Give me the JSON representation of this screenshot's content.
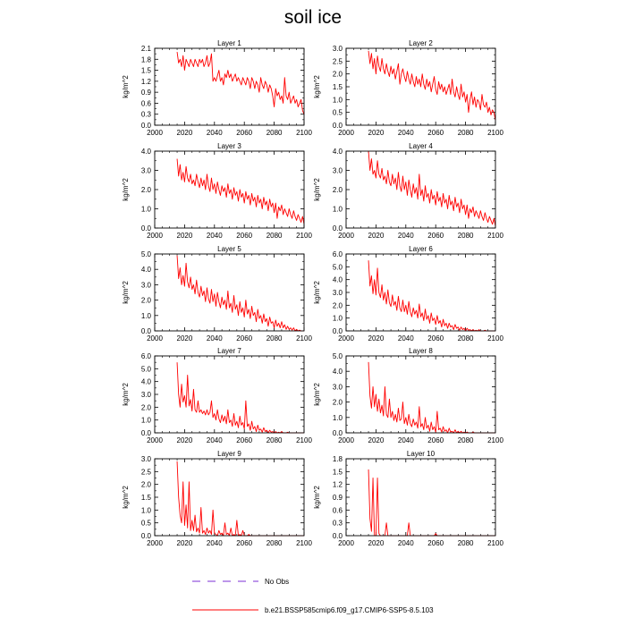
{
  "title": "soil ice",
  "colors": {
    "series": "#ff0000",
    "no_obs": "#7b2fd6",
    "axis": "#000000"
  },
  "legend": {
    "no_obs_label": "No Obs",
    "model_label": "b.e21.BSSP585cmip6.f09_g17.CMIP6-SSP5-8.5.103"
  },
  "chart_data": [
    {
      "type": "line",
      "title": "Layer 1",
      "ylabel": "kg/m^2",
      "xlim": [
        2000,
        2100
      ],
      "ylim": [
        0,
        2.1
      ],
      "xticks": [
        "2000",
        "2020",
        "2040",
        "2060",
        "2080",
        "2100"
      ],
      "yticks": [
        "0.0",
        "0.3",
        "0.6",
        "0.9",
        "1.2",
        "1.5",
        "1.8",
        "2.1"
      ],
      "x_start": 2015,
      "values": [
        2.0,
        1.7,
        1.8,
        1.6,
        1.9,
        1.5,
        1.8,
        1.7,
        1.6,
        1.8,
        1.7,
        1.6,
        1.8,
        1.7,
        1.6,
        1.8,
        1.7,
        1.8,
        1.6,
        1.7,
        1.9,
        1.6,
        1.7,
        1.95,
        1.2,
        1.3,
        1.2,
        1.35,
        1.5,
        1.2,
        1.3,
        1.1,
        1.4,
        1.3,
        1.5,
        1.3,
        1.4,
        1.2,
        1.3,
        1.4,
        1.2,
        1.3,
        1.2,
        1.1,
        1.3,
        1.2,
        1.1,
        1.3,
        1.2,
        1.0,
        1.3,
        1.2,
        1.0,
        1.2,
        1.1,
        0.9,
        1.3,
        1.1,
        1.0,
        1.2,
        1.1,
        0.9,
        1.1,
        1.0,
        0.8,
        0.5,
        1.0,
        0.8,
        0.9,
        0.7,
        0.8,
        0.6,
        1.3,
        0.8,
        0.7,
        0.9,
        0.6,
        0.7,
        0.8,
        0.6,
        0.7,
        0.5,
        0.6,
        0.7,
        0.4,
        0.3
      ]
    },
    {
      "type": "line",
      "title": "Layer 2",
      "ylabel": "kg/m^2",
      "xlim": [
        2000,
        2100
      ],
      "ylim": [
        0,
        3.0
      ],
      "xticks": [
        "2000",
        "2020",
        "2040",
        "2060",
        "2080",
        "2100"
      ],
      "yticks": [
        "0.0",
        "0.5",
        "1.0",
        "1.5",
        "2.0",
        "2.5",
        "3.0"
      ],
      "x_start": 2015,
      "values": [
        2.9,
        2.4,
        2.8,
        2.2,
        2.6,
        2.0,
        2.7,
        2.3,
        2.1,
        2.6,
        2.2,
        2.0,
        2.4,
        2.1,
        1.9,
        2.3,
        2.0,
        2.2,
        1.8,
        2.1,
        2.4,
        1.6,
        2.0,
        2.2,
        1.9,
        1.7,
        2.1,
        1.8,
        1.6,
        2.0,
        1.7,
        1.5,
        1.9,
        1.6,
        1.8,
        1.5,
        2.0,
        1.6,
        1.4,
        1.8,
        1.5,
        1.7,
        1.3,
        1.6,
        1.9,
        1.4,
        1.2,
        1.7,
        1.4,
        1.6,
        1.3,
        1.5,
        1.2,
        1.4,
        1.6,
        1.2,
        1.8,
        1.3,
        1.1,
        1.5,
        1.2,
        1.0,
        1.6,
        1.1,
        1.3,
        0.9,
        1.2,
        0.5,
        1.0,
        1.3,
        0.8,
        1.1,
        0.7,
        1.0,
        0.9,
        0.6,
        1.2,
        0.8,
        0.7,
        0.9,
        0.5,
        0.7,
        0.4,
        0.6,
        0.5,
        0.2
      ]
    },
    {
      "type": "line",
      "title": "Layer 3",
      "ylabel": "kg/m^2",
      "xlim": [
        2000,
        2100
      ],
      "ylim": [
        0,
        4.0
      ],
      "xticks": [
        "2000",
        "2020",
        "2040",
        "2060",
        "2080",
        "2100"
      ],
      "yticks": [
        "0.0",
        "1.0",
        "2.0",
        "3.0",
        "4.0"
      ],
      "x_start": 2015,
      "values": [
        3.6,
        2.7,
        3.3,
        2.5,
        2.9,
        2.4,
        3.2,
        2.6,
        2.4,
        2.8,
        2.3,
        2.5,
        2.2,
        2.8,
        2.4,
        2.1,
        2.6,
        2.2,
        2.5,
        2.0,
        2.8,
        2.2,
        1.9,
        2.6,
        2.0,
        2.3,
        1.8,
        2.4,
        2.0,
        1.7,
        2.2,
        1.9,
        2.1,
        1.6,
        2.3,
        1.8,
        2.0,
        1.5,
        2.1,
        1.7,
        1.9,
        1.4,
        2.0,
        1.6,
        1.8,
        1.3,
        1.9,
        1.5,
        1.7,
        1.2,
        1.8,
        1.4,
        1.6,
        1.1,
        1.7,
        1.3,
        1.5,
        1.0,
        1.6,
        1.2,
        1.4,
        0.9,
        1.5,
        1.1,
        1.3,
        0.8,
        1.3,
        0.5,
        1.1,
        0.9,
        1.2,
        0.7,
        1.0,
        0.8,
        0.6,
        1.0,
        0.7,
        0.5,
        0.9,
        0.6,
        0.4,
        0.7,
        0.5,
        0.3,
        0.6,
        0.2
      ]
    },
    {
      "type": "line",
      "title": "Layer 4",
      "ylabel": "kg/m^2",
      "xlim": [
        2000,
        2100
      ],
      "ylim": [
        0,
        4.0
      ],
      "xticks": [
        "2000",
        "2020",
        "2040",
        "2060",
        "2080",
        "2100"
      ],
      "yticks": [
        "0.0",
        "1.0",
        "2.0",
        "3.0",
        "4.0"
      ],
      "x_start": 2015,
      "values": [
        4.0,
        3.0,
        3.6,
        2.8,
        3.0,
        2.6,
        3.5,
        2.8,
        2.6,
        3.1,
        2.5,
        2.7,
        2.3,
        3.0,
        2.4,
        2.2,
        2.8,
        2.3,
        2.6,
        2.0,
        2.9,
        2.2,
        1.9,
        2.7,
        2.0,
        2.4,
        1.7,
        2.5,
        2.0,
        1.6,
        2.3,
        1.8,
        2.1,
        1.5,
        2.8,
        1.7,
        2.0,
        1.4,
        2.2,
        1.6,
        1.8,
        1.3,
        2.0,
        1.5,
        1.7,
        1.2,
        1.9,
        1.4,
        1.6,
        1.1,
        1.8,
        1.3,
        1.5,
        1.0,
        1.7,
        1.2,
        1.4,
        0.9,
        1.6,
        1.1,
        1.3,
        0.8,
        1.5,
        1.0,
        1.2,
        0.7,
        1.2,
        0.5,
        1.0,
        0.8,
        1.1,
        0.6,
        0.9,
        0.7,
        0.5,
        0.9,
        0.6,
        0.4,
        0.8,
        0.5,
        0.3,
        0.6,
        0.4,
        0.2,
        0.5,
        0.1
      ]
    },
    {
      "type": "line",
      "title": "Layer 5",
      "ylabel": "kg/m^2",
      "xlim": [
        2000,
        2100
      ],
      "ylim": [
        0,
        5.0
      ],
      "xticks": [
        "2000",
        "2020",
        "2040",
        "2060",
        "2080",
        "2100"
      ],
      "yticks": [
        "0.0",
        "1.0",
        "2.0",
        "3.0",
        "4.0",
        "5.0"
      ],
      "x_start": 2015,
      "values": [
        4.9,
        3.4,
        4.1,
        3.0,
        3.6,
        2.9,
        4.4,
        3.2,
        2.8,
        3.5,
        2.7,
        3.0,
        2.4,
        3.3,
        2.5,
        2.2,
        2.9,
        2.3,
        2.6,
        1.9,
        2.8,
        2.1,
        1.8,
        2.7,
        1.9,
        2.4,
        1.6,
        2.5,
        1.9,
        1.5,
        2.2,
        1.7,
        2.0,
        1.4,
        2.6,
        1.5,
        1.8,
        1.2,
        2.3,
        1.4,
        1.7,
        1.0,
        1.9,
        1.2,
        1.5,
        0.9,
        2.0,
        1.1,
        1.4,
        0.8,
        1.6,
        1.0,
        1.2,
        0.6,
        1.4,
        0.8,
        1.0,
        0.5,
        1.1,
        0.6,
        0.8,
        0.3,
        0.9,
        0.5,
        0.6,
        0.2,
        0.7,
        0.3,
        0.5,
        0.2,
        0.6,
        0.2,
        0.4,
        0.1,
        0.3,
        0.1,
        0.2,
        0.05,
        0.2,
        0.0,
        0.1,
        0.0,
        0.05,
        0.0,
        0.0,
        0.0
      ]
    },
    {
      "type": "line",
      "title": "Layer 6",
      "ylabel": "kg/m^2",
      "xlim": [
        2000,
        2100
      ],
      "ylim": [
        0,
        6.0
      ],
      "xticks": [
        "2000",
        "2020",
        "2040",
        "2060",
        "2080",
        "2100"
      ],
      "yticks": [
        "0.0",
        "1.0",
        "2.0",
        "3.0",
        "4.0",
        "5.0",
        "6.0"
      ],
      "x_start": 2015,
      "values": [
        5.5,
        3.5,
        4.3,
        2.9,
        4.0,
        2.8,
        4.9,
        3.0,
        2.6,
        3.6,
        2.4,
        3.0,
        2.1,
        3.2,
        2.2,
        1.9,
        2.8,
        2.0,
        2.3,
        1.6,
        2.7,
        1.8,
        1.5,
        2.4,
        1.5,
        2.0,
        1.3,
        2.3,
        1.5,
        1.1,
        1.8,
        1.3,
        1.6,
        1.0,
        2.1,
        1.1,
        1.4,
        0.8,
        1.7,
        0.9,
        1.2,
        0.6,
        1.4,
        0.8,
        1.0,
        0.5,
        1.2,
        0.6,
        0.8,
        0.3,
        0.9,
        0.4,
        0.6,
        0.2,
        0.6,
        0.3,
        0.4,
        0.1,
        0.5,
        0.2,
        0.3,
        0.05,
        0.3,
        0.1,
        0.2,
        0.0,
        0.2,
        0.05,
        0.1,
        0.0,
        0.1,
        0.0,
        0.05,
        0.0,
        0.1,
        0.0,
        0.0,
        0.0,
        0.05,
        0.0,
        0.0,
        0.0,
        0.0,
        0.0,
        0.0,
        0.0
      ]
    },
    {
      "type": "line",
      "title": "Layer 7",
      "ylabel": "kg/m^2",
      "xlim": [
        2000,
        2100
      ],
      "ylim": [
        0,
        6.0
      ],
      "xticks": [
        "2000",
        "2020",
        "2040",
        "2060",
        "2080",
        "2100"
      ],
      "yticks": [
        "0.0",
        "1.0",
        "2.0",
        "3.0",
        "4.0",
        "5.0",
        "6.0"
      ],
      "x_start": 2015,
      "values": [
        5.5,
        3.0,
        2.0,
        3.8,
        2.4,
        2.9,
        2.0,
        4.5,
        2.1,
        2.6,
        1.7,
        3.4,
        1.8,
        1.6,
        2.5,
        1.6,
        1.8,
        1.5,
        1.7,
        1.4,
        1.8,
        1.4,
        1.6,
        2.5,
        1.2,
        1.5,
        1.0,
        1.8,
        1.1,
        0.8,
        1.4,
        0.9,
        1.3,
        0.7,
        1.8,
        0.8,
        1.0,
        0.5,
        1.5,
        0.6,
        0.9,
        0.4,
        1.3,
        0.6,
        0.8,
        0.3,
        2.5,
        0.5,
        0.7,
        0.2,
        0.9,
        0.3,
        0.5,
        0.1,
        0.6,
        0.2,
        0.3,
        0.05,
        0.4,
        0.1,
        0.2,
        0.0,
        0.2,
        0.05,
        0.1,
        0.0,
        0.1,
        0.0,
        0.05,
        0.0,
        0.1,
        0.0,
        0.0,
        0.0,
        0.05,
        0.0,
        0.0,
        0.0,
        0.0,
        0.0,
        0.0,
        0.0,
        0.0,
        0.0,
        0.0,
        0.0
      ]
    },
    {
      "type": "line",
      "title": "Layer 8",
      "ylabel": "kg/m^2",
      "xlim": [
        2000,
        2100
      ],
      "ylim": [
        0,
        5.0
      ],
      "xticks": [
        "2000",
        "2020",
        "2040",
        "2060",
        "2080",
        "2100"
      ],
      "yticks": [
        "0.0",
        "1.0",
        "2.0",
        "3.0",
        "4.0",
        "5.0"
      ],
      "x_start": 2015,
      "values": [
        4.6,
        2.4,
        1.6,
        3.0,
        1.7,
        2.5,
        1.4,
        2.2,
        1.3,
        1.8,
        1.1,
        3.0,
        1.2,
        1.0,
        2.2,
        1.0,
        1.4,
        0.8,
        1.2,
        0.7,
        1.6,
        0.8,
        0.9,
        2.0,
        0.6,
        1.0,
        0.5,
        1.2,
        0.6,
        0.4,
        0.9,
        0.5,
        0.7,
        0.3,
        1.7,
        0.4,
        0.6,
        0.2,
        1.0,
        0.3,
        0.5,
        0.1,
        0.7,
        0.2,
        0.4,
        0.05,
        1.4,
        0.2,
        0.3,
        0.05,
        0.4,
        0.1,
        0.2,
        0.0,
        0.3,
        0.05,
        0.1,
        0.0,
        0.2,
        0.0,
        0.1,
        0.0,
        0.1,
        0.0,
        0.05,
        0.0,
        0.05,
        0.0,
        0.0,
        0.0,
        0.05,
        0.0,
        0.0,
        0.0,
        0.0,
        0.0,
        0.0,
        0.0,
        0.0,
        0.0,
        0.0,
        0.0,
        0.0,
        0.0,
        0.0,
        0.0
      ]
    },
    {
      "type": "line",
      "title": "Layer 9",
      "ylabel": "kg/m^2",
      "xlim": [
        2000,
        2100
      ],
      "ylim": [
        0,
        3.0
      ],
      "xticks": [
        "2000",
        "2020",
        "2040",
        "2060",
        "2080",
        "2100"
      ],
      "yticks": [
        "0.0",
        "0.5",
        "1.0",
        "1.5",
        "2.0",
        "2.5",
        "3.0"
      ],
      "x_start": 2015,
      "values": [
        2.9,
        1.5,
        0.8,
        0.5,
        2.1,
        0.4,
        1.2,
        0.3,
        2.1,
        0.2,
        0.6,
        0.2,
        0.8,
        0.15,
        0.3,
        0.1,
        1.1,
        0.1,
        0.2,
        0.05,
        0.3,
        0.1,
        0.2,
        0.05,
        1.0,
        0.1,
        0.05,
        0.0,
        0.2,
        0.05,
        0.1,
        0.0,
        0.5,
        0.05,
        0.1,
        0.0,
        0.3,
        0.0,
        0.05,
        0.0,
        0.6,
        0.0,
        0.05,
        0.0,
        0.2,
        0.0,
        0.0,
        0.0,
        0.05,
        0.0,
        0.0,
        0.0,
        0.0,
        0.0,
        0.0,
        0.0,
        0.0,
        0.0,
        0.0,
        0.0,
        0.0,
        0.0,
        0.0,
        0.0,
        0.0,
        0.0,
        0.0,
        0.0,
        0.0,
        0.0,
        0.0,
        0.0,
        0.0,
        0.0,
        0.0,
        0.0,
        0.0,
        0.0,
        0.0,
        0.0,
        0.0,
        0.0,
        0.0,
        0.0,
        0.0,
        0.0
      ]
    },
    {
      "type": "line",
      "title": "Layer 10",
      "ylabel": "kg/m^2",
      "xlim": [
        2000,
        2100
      ],
      "ylim": [
        0,
        1.8
      ],
      "xticks": [
        "2000",
        "2020",
        "2040",
        "2060",
        "2080",
        "2100"
      ],
      "yticks": [
        "0.0",
        "0.3",
        "0.6",
        "0.9",
        "1.2",
        "1.5",
        "1.8"
      ],
      "x_start": 2015,
      "values": [
        1.55,
        0.4,
        0.1,
        1.35,
        0.0,
        0.0,
        1.35,
        0.05,
        0.0,
        0.0,
        0.0,
        0.0,
        0.3,
        0.0,
        0.0,
        0.0,
        0.0,
        0.0,
        0.0,
        0.0,
        0.0,
        0.0,
        0.0,
        0.0,
        0.0,
        0.0,
        0.0,
        0.3,
        0.0,
        0.0,
        0.0,
        0.0,
        0.0,
        0.0,
        0.0,
        0.0,
        0.0,
        0.0,
        0.0,
        0.0,
        0.0,
        0.0,
        0.0,
        0.0,
        0.0,
        0.05,
        0.0,
        0.0,
        0.0,
        0.0,
        0.0,
        0.0,
        0.0,
        0.0,
        0.0,
        0.0,
        0.0,
        0.0,
        0.0,
        0.0,
        0.0,
        0.0,
        0.0,
        0.0,
        0.0,
        0.0,
        0.0,
        0.0,
        0.0,
        0.0,
        0.0,
        0.0,
        0.0,
        0.0,
        0.0,
        0.0,
        0.0,
        0.0,
        0.0,
        0.0,
        0.0,
        0.0,
        0.0,
        0.0,
        0.0,
        0.0
      ]
    }
  ]
}
